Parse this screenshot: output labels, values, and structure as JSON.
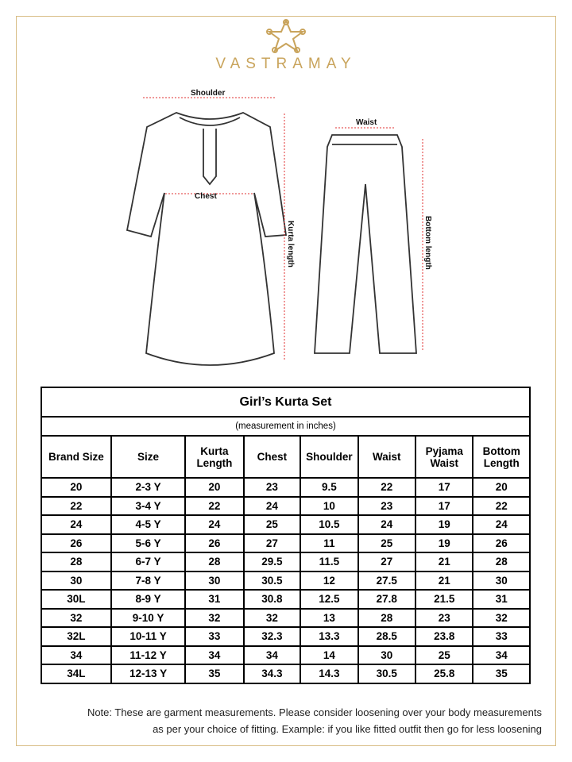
{
  "brand": {
    "name": "VASTRAMAY",
    "accent": "#c9a45c"
  },
  "illustration": {
    "shoulder": "Shoulder",
    "chest": "Chest",
    "kurta_length": "Kurta length",
    "waist": "Waist",
    "bottom_length": "Bottom length"
  },
  "table": {
    "title": "Girl’s Kurta Set",
    "subtitle": "(measurement in inches)",
    "headers": [
      "Brand Size",
      "Size",
      "Kurta Length",
      "Chest",
      "Shoulder",
      "Waist",
      "Pyjama Waist",
      "Bottom Length"
    ],
    "rows": [
      [
        "20",
        "2-3 Y",
        "20",
        "23",
        "9.5",
        "22",
        "17",
        "20"
      ],
      [
        "22",
        "3-4 Y",
        "22",
        "24",
        "10",
        "23",
        "17",
        "22"
      ],
      [
        "24",
        "4-5 Y",
        "24",
        "25",
        "10.5",
        "24",
        "19",
        "24"
      ],
      [
        "26",
        "5-6 Y",
        "26",
        "27",
        "11",
        "25",
        "19",
        "26"
      ],
      [
        "28",
        "6-7 Y",
        "28",
        "29.5",
        "11.5",
        "27",
        "21",
        "28"
      ],
      [
        "30",
        "7-8 Y",
        "30",
        "30.5",
        "12",
        "27.5",
        "21",
        "30"
      ],
      [
        "30L",
        "8-9 Y",
        "31",
        "30.8",
        "12.5",
        "27.8",
        "21.5",
        "31"
      ],
      [
        "32",
        "9-10 Y",
        "32",
        "32",
        "13",
        "28",
        "23",
        "32"
      ],
      [
        "32L",
        "10-11 Y",
        "33",
        "32.3",
        "13.3",
        "28.5",
        "23.8",
        "33"
      ],
      [
        "34",
        "11-12 Y",
        "34",
        "34",
        "14",
        "30",
        "25",
        "34"
      ],
      [
        "34L",
        "12-13 Y",
        "35",
        "34.3",
        "14.3",
        "30.5",
        "25.8",
        "35"
      ]
    ]
  },
  "note": {
    "line1": "Note: These are garment measurements. Please consider loosening over your body measurements",
    "line2": "as per your choice of fitting. Example: if you like fitted outfit then go for less loosening"
  }
}
